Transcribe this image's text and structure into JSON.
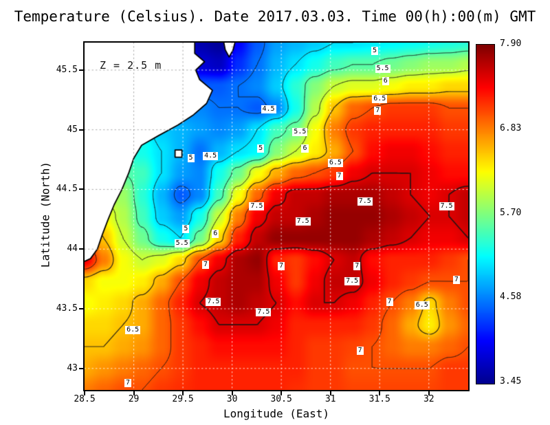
{
  "title": "Temperature (Celsius). Date 2017.03.03. Time 00(h):00(m) GMT",
  "annotation": "Z = 2.5 m",
  "axes": {
    "x": {
      "label": "Longitude (East)",
      "ticks": [
        {
          "value": 28.5,
          "label": "28.5"
        },
        {
          "value": 29,
          "label": "29"
        },
        {
          "value": 29.5,
          "label": "29.5"
        },
        {
          "value": 30,
          "label": "30"
        },
        {
          "value": 30.5,
          "label": "30.5"
        },
        {
          "value": 31,
          "label": "31"
        },
        {
          "value": 31.5,
          "label": "31.5"
        },
        {
          "value": 32,
          "label": "32"
        }
      ]
    },
    "y": {
      "label": "Latitude (North)",
      "ticks": [
        {
          "value": 45.5,
          "label": "45.5"
        },
        {
          "value": 45,
          "label": "45"
        },
        {
          "value": 44.5,
          "label": "44.5"
        },
        {
          "value": 44,
          "label": "44"
        },
        {
          "value": 43.5,
          "label": "43.5"
        },
        {
          "value": 43,
          "label": "43"
        }
      ]
    }
  },
  "colorbar": {
    "min": 3.45,
    "max": 7.9,
    "labels": [
      "7.90",
      "6.83",
      "5.70",
      "4.58",
      "3.45"
    ]
  },
  "chart_data": {
    "type": "heatmap",
    "title": "Temperature (Celsius). Date 2017.03.03. Time 00(h):00(m) GMT",
    "units": "Celsius",
    "annotation": "Z = 2.5 m",
    "x_label": "Longitude (East)",
    "y_label": "Latitude (North)",
    "x_range": [
      28.5,
      32.4
    ],
    "y_range": [
      42.82,
      45.73
    ],
    "value_range": [
      3.45,
      7.9
    ],
    "contour_levels": [
      4.5,
      5,
      5.5,
      6,
      6.5,
      7,
      7.5
    ],
    "grid": {
      "note": "temperature grid, rows ordered north(45.73) to south(42.82), cols west(28.5) to east(32.4)",
      "nx": 21,
      "ny": 17,
      "values": [
        [
          5.0,
          5.0,
          5.0,
          5.0,
          4.8,
          4.2,
          3.6,
          3.5,
          4.0,
          4.4,
          4.7,
          4.8,
          4.9,
          5.0,
          5.0,
          5.05,
          5.1,
          5.15,
          5.2,
          5.25,
          5.3
        ],
        [
          5.0,
          5.0,
          5.0,
          5.0,
          4.8,
          4.3,
          3.8,
          3.7,
          4.2,
          4.5,
          4.8,
          5.0,
          5.2,
          5.4,
          5.5,
          5.5,
          5.6,
          5.7,
          5.8,
          5.8,
          5.9
        ],
        [
          5.0,
          5.0,
          5.0,
          5.0,
          4.8,
          4.5,
          4.4,
          4.4,
          4.5,
          4.6,
          4.9,
          5.3,
          5.7,
          6.0,
          6.1,
          6.1,
          6.2,
          6.3,
          6.3,
          6.4,
          6.4
        ],
        [
          5.0,
          5.0,
          5.0,
          5.0,
          4.8,
          4.6,
          4.6,
          4.5,
          4.5,
          4.4,
          4.6,
          5.2,
          5.9,
          6.5,
          6.9,
          7.0,
          7.1,
          7.1,
          7.1,
          7.0,
          7.0
        ],
        [
          5.2,
          5.2,
          5.2,
          5.1,
          4.9,
          4.8,
          4.7,
          4.6,
          4.7,
          5.0,
          5.4,
          5.6,
          6.2,
          6.8,
          7.1,
          7.2,
          7.2,
          7.2,
          7.2,
          7.1,
          7.1
        ],
        [
          5.4,
          5.4,
          5.3,
          5.2,
          5.0,
          4.8,
          4.5,
          4.8,
          5.0,
          5.1,
          5.7,
          6.0,
          6.3,
          6.6,
          7.0,
          7.3,
          7.4,
          7.4,
          7.3,
          7.2,
          7.2
        ],
        [
          5.6,
          5.6,
          5.5,
          5.4,
          5.0,
          4.7,
          4.6,
          5.2,
          5.6,
          6.2,
          6.6,
          6.9,
          7.0,
          7.1,
          7.4,
          7.5,
          7.5,
          7.5,
          7.4,
          7.3,
          7.3
        ],
        [
          5.9,
          5.9,
          5.8,
          5.3,
          4.8,
          4.4,
          4.6,
          5.4,
          6.2,
          6.9,
          7.4,
          7.6,
          7.6,
          7.7,
          7.7,
          7.7,
          7.6,
          7.5,
          7.4,
          7.5,
          7.6
        ],
        [
          6.2,
          6.2,
          5.9,
          5.4,
          4.9,
          4.7,
          5.2,
          6.0,
          6.8,
          7.4,
          7.6,
          7.6,
          7.7,
          7.8,
          7.8,
          7.8,
          7.7,
          7.6,
          7.5,
          7.5,
          7.6
        ],
        [
          7.0,
          6.5,
          6.0,
          5.6,
          5.2,
          5.0,
          5.6,
          6.4,
          7.2,
          7.6,
          7.8,
          7.8,
          7.8,
          7.8,
          7.8,
          7.7,
          7.6,
          7.5,
          7.4,
          7.4,
          7.5
        ],
        [
          7.4,
          6.8,
          6.2,
          6.0,
          6.1,
          6.4,
          7.0,
          7.4,
          7.7,
          7.8,
          7.2,
          7.1,
          7.3,
          7.5,
          7.6,
          7.3,
          7.2,
          7.2,
          7.2,
          7.1,
          7.0
        ],
        [
          6.4,
          6.2,
          6.2,
          6.3,
          6.6,
          7.0,
          7.4,
          7.6,
          7.7,
          7.7,
          7.4,
          7.1,
          7.4,
          7.6,
          7.6,
          7.4,
          7.2,
          7.1,
          7.0,
          7.0,
          7.0
        ],
        [
          6.2,
          6.3,
          6.4,
          6.6,
          6.9,
          7.2,
          7.5,
          7.6,
          7.7,
          7.6,
          7.5,
          7.3,
          7.5,
          7.5,
          7.4,
          7.2,
          7.0,
          6.8,
          6.4,
          6.8,
          7.0
        ],
        [
          6.4,
          6.4,
          6.5,
          6.6,
          6.9,
          7.1,
          7.3,
          7.5,
          7.5,
          7.5,
          7.4,
          7.2,
          7.2,
          7.2,
          7.2,
          7.1,
          6.9,
          6.6,
          6.3,
          6.7,
          6.9
        ],
        [
          6.5,
          6.5,
          6.6,
          6.7,
          6.9,
          7.1,
          7.2,
          7.3,
          7.3,
          7.3,
          7.3,
          7.2,
          7.1,
          7.1,
          7.05,
          7.0,
          6.9,
          6.8,
          6.8,
          6.9,
          7.0
        ],
        [
          6.6,
          6.7,
          6.8,
          6.9,
          7.0,
          7.1,
          7.2,
          7.2,
          7.2,
          7.2,
          7.2,
          7.2,
          7.1,
          7.1,
          7.0,
          7.0,
          7.0,
          7.0,
          7.0,
          7.1,
          7.1
        ],
        [
          6.8,
          6.9,
          7.0,
          7.0,
          7.1,
          7.15,
          7.2,
          7.2,
          7.2,
          7.2,
          7.2,
          7.15,
          7.1,
          7.1,
          7.05,
          7.05,
          7.05,
          7.05,
          7.05,
          7.1,
          7.1
        ]
      ]
    },
    "contour_labels": [
      {
        "v": "5",
        "lon": 31.45,
        "lat": 45.66
      },
      {
        "v": "5.5",
        "lon": 31.53,
        "lat": 45.51
      },
      {
        "v": "6",
        "lon": 31.56,
        "lat": 45.41
      },
      {
        "v": "6.5",
        "lon": 31.5,
        "lat": 45.26
      },
      {
        "v": "7",
        "lon": 31.48,
        "lat": 45.16
      },
      {
        "v": "4.5",
        "lon": 30.37,
        "lat": 45.17
      },
      {
        "v": "5.5",
        "lon": 30.69,
        "lat": 44.98
      },
      {
        "v": "5",
        "lon": 30.29,
        "lat": 44.84
      },
      {
        "v": "6",
        "lon": 30.74,
        "lat": 44.84
      },
      {
        "v": "6.5",
        "lon": 31.05,
        "lat": 44.72
      },
      {
        "v": "7",
        "lon": 31.09,
        "lat": 44.61
      },
      {
        "v": "5",
        "lon": 29.58,
        "lat": 44.76
      },
      {
        "v": "4.5",
        "lon": 29.78,
        "lat": 44.78
      },
      {
        "v": "7.5",
        "lon": 31.35,
        "lat": 44.4
      },
      {
        "v": "7.5",
        "lon": 32.18,
        "lat": 44.36
      },
      {
        "v": "7.5",
        "lon": 30.25,
        "lat": 44.36
      },
      {
        "v": "7.5",
        "lon": 30.72,
        "lat": 44.23
      },
      {
        "v": "6",
        "lon": 29.83,
        "lat": 44.13
      },
      {
        "v": "5",
        "lon": 29.53,
        "lat": 44.17
      },
      {
        "v": "5.5",
        "lon": 29.49,
        "lat": 44.05
      },
      {
        "v": "7",
        "lon": 29.73,
        "lat": 43.87
      },
      {
        "v": "7",
        "lon": 30.5,
        "lat": 43.86
      },
      {
        "v": "7",
        "lon": 31.27,
        "lat": 43.86
      },
      {
        "v": "7",
        "lon": 32.28,
        "lat": 43.74
      },
      {
        "v": "7.5",
        "lon": 31.22,
        "lat": 43.73
      },
      {
        "v": "7.5",
        "lon": 29.81,
        "lat": 43.56
      },
      {
        "v": "7.5",
        "lon": 30.32,
        "lat": 43.47
      },
      {
        "v": "6.5",
        "lon": 28.99,
        "lat": 43.32
      },
      {
        "v": "7",
        "lon": 31.6,
        "lat": 43.56
      },
      {
        "v": "6.5",
        "lon": 31.93,
        "lat": 43.53
      },
      {
        "v": "7",
        "lon": 31.3,
        "lat": 43.15
      },
      {
        "v": "7",
        "lon": 28.94,
        "lat": 42.88
      }
    ],
    "colormap": {
      "name": "jet",
      "stops": [
        {
          "t": 0.0,
          "c": [
            0,
            0,
            143
          ]
        },
        {
          "t": 0.125,
          "c": [
            0,
            0,
            255
          ]
        },
        {
          "t": 0.375,
          "c": [
            0,
            255,
            255
          ]
        },
        {
          "t": 0.625,
          "c": [
            255,
            255,
            0
          ]
        },
        {
          "t": 0.875,
          "c": [
            255,
            0,
            0
          ]
        },
        {
          "t": 1.0,
          "c": [
            127,
            0,
            0
          ]
        }
      ]
    },
    "land": {
      "fill": "#ffffff",
      "coast_color": "#000000",
      "polygons": [
        [
          [
            28.4,
            45.8
          ],
          [
            29.62,
            45.8
          ],
          [
            29.62,
            45.64
          ],
          [
            29.72,
            45.57
          ],
          [
            29.63,
            45.5
          ],
          [
            29.67,
            45.42
          ],
          [
            29.8,
            45.33
          ],
          [
            29.74,
            45.22
          ],
          [
            29.6,
            45.12
          ],
          [
            29.45,
            45.04
          ],
          [
            29.25,
            44.95
          ],
          [
            29.08,
            44.87
          ],
          [
            29.0,
            44.76
          ],
          [
            28.95,
            44.64
          ],
          [
            28.88,
            44.5
          ],
          [
            28.8,
            44.37
          ],
          [
            28.74,
            44.25
          ],
          [
            28.68,
            44.12
          ],
          [
            28.63,
            44.0
          ],
          [
            28.56,
            43.92
          ],
          [
            28.4,
            43.86
          ]
        ],
        [
          [
            29.9,
            45.8
          ],
          [
            29.93,
            45.67
          ],
          [
            29.97,
            45.61
          ],
          [
            30.01,
            45.67
          ],
          [
            30.05,
            45.8
          ]
        ],
        [
          [
            29.42,
            44.83
          ],
          [
            29.49,
            44.83
          ],
          [
            29.49,
            44.77
          ],
          [
            29.42,
            44.77
          ]
        ]
      ]
    },
    "grid_lines": {
      "style": "dotted",
      "x": [
        29,
        29.5,
        30,
        30.5,
        31,
        31.5,
        32
      ],
      "y": [
        43,
        43.5,
        44,
        44.5,
        45,
        45.5
      ]
    }
  }
}
